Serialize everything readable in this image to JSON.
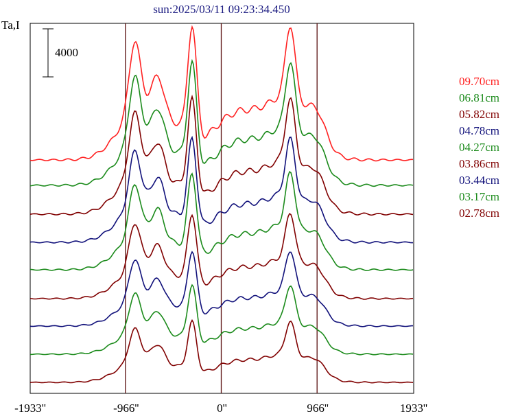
{
  "chart_data": {
    "type": "line",
    "title": "sun:2025/03/11 09:23:34.450",
    "ylabel": "Ta,I",
    "scale_bar_label": "4000",
    "x_tick_labels": [
      "-1933''",
      "-966''",
      "0''",
      "966''",
      "1933''"
    ],
    "xlim": [
      -1933,
      1933
    ],
    "vertical_lines_x": [
      -966,
      0,
      966
    ],
    "series": [
      {
        "name": "09.70cm",
        "color": "#ff2020"
      },
      {
        "name": "06.81cm",
        "color": "#1a8a1a"
      },
      {
        "name": "05.82cm",
        "color": "#800000"
      },
      {
        "name": "04.78cm",
        "color": "#10107a"
      },
      {
        "name": "04.27cm",
        "color": "#1a8a1a"
      },
      {
        "name": "03.86cm",
        "color": "#800000"
      },
      {
        "name": "03.44cm",
        "color": "#10107a"
      },
      {
        "name": "03.17cm",
        "color": "#1a8a1a"
      },
      {
        "name": "02.78cm",
        "color": "#800000"
      }
    ]
  }
}
